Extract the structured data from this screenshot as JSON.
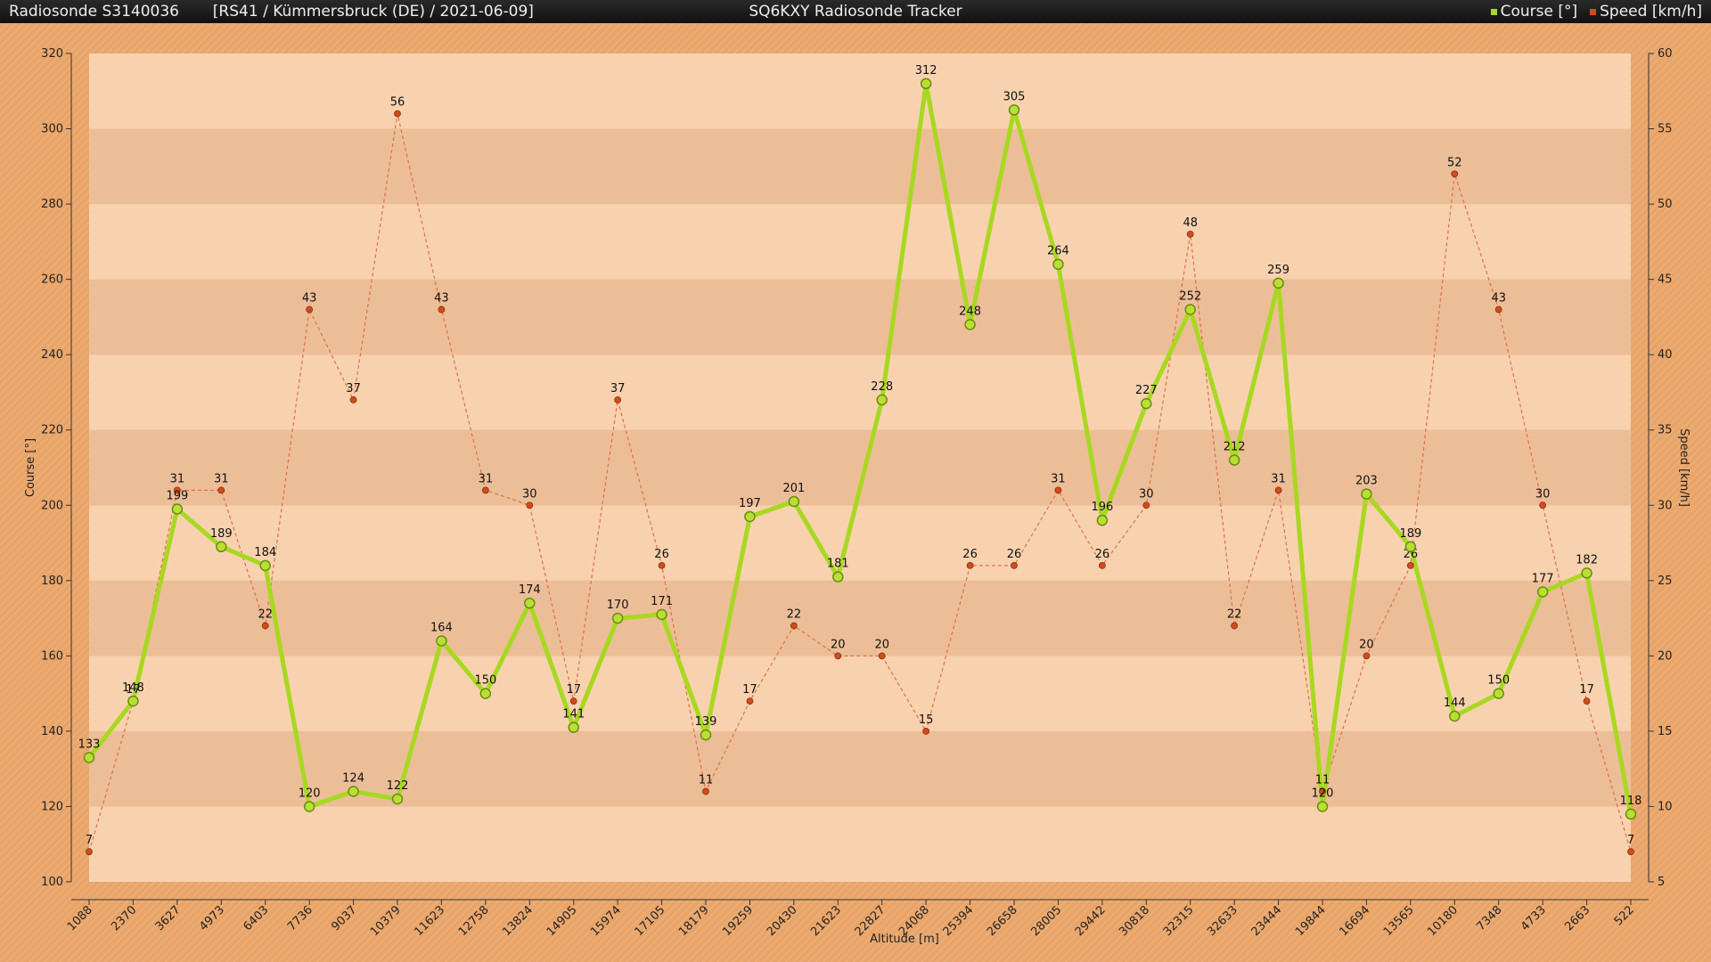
{
  "header": {
    "sonde": "Radiosonde S3140036",
    "info": "[RS41 / Kümmersbruck (DE) / 2021-06-09]",
    "app_title": "SQ6KXY Radiosonde Tracker"
  },
  "colors": {
    "course": "#a8d820",
    "speed": "#d04c1c",
    "band_light": "#f8d2ae",
    "band_dark": "#ecbe98"
  },
  "chart_data": {
    "type": "line",
    "xlabel": "Altitude [m]",
    "ylabel_left": "Course [°]",
    "ylabel_right": "Speed [km/h]",
    "ylim_left": [
      100,
      320
    ],
    "ylim_right": [
      5,
      60
    ],
    "yticks_left": [
      100,
      120,
      140,
      160,
      180,
      200,
      220,
      240,
      260,
      280,
      300,
      320
    ],
    "yticks_right": [
      5,
      10,
      15,
      20,
      25,
      30,
      35,
      40,
      45,
      50,
      55,
      60
    ],
    "legend_position": "top-right",
    "grid": "horizontal bands",
    "categories": [
      "1088",
      "2370",
      "3627",
      "4973",
      "6403",
      "7736",
      "9037",
      "10379",
      "11623",
      "12758",
      "13824",
      "14905",
      "15974",
      "17105",
      "18179",
      "19259",
      "20430",
      "21623",
      "22827",
      "24068",
      "25394",
      "26658",
      "28005",
      "29442",
      "30818",
      "32315",
      "32633",
      "23444",
      "19844",
      "16694",
      "13565",
      "10180",
      "7348",
      "4733",
      "2663",
      "522"
    ],
    "series": [
      {
        "name": "Course [°]",
        "axis": "left",
        "values": [
          133,
          148,
          199,
          189,
          184,
          120,
          124,
          122,
          164,
          150,
          174,
          141,
          170,
          171,
          139,
          197,
          201,
          181,
          228,
          312,
          248,
          305,
          264,
          196,
          227,
          252,
          212,
          259,
          120,
          203,
          189,
          144,
          150,
          177,
          182,
          118
        ]
      },
      {
        "name": "Speed [km/h]",
        "axis": "right",
        "values": [
          7,
          17,
          31,
          31,
          22,
          43,
          37,
          56,
          43,
          31,
          30,
          17,
          37,
          26,
          11,
          17,
          22,
          20,
          20,
          15,
          26,
          26,
          31,
          26,
          30,
          48,
          22,
          31,
          11,
          20,
          26,
          52,
          43,
          30,
          17,
          7
        ]
      }
    ]
  }
}
